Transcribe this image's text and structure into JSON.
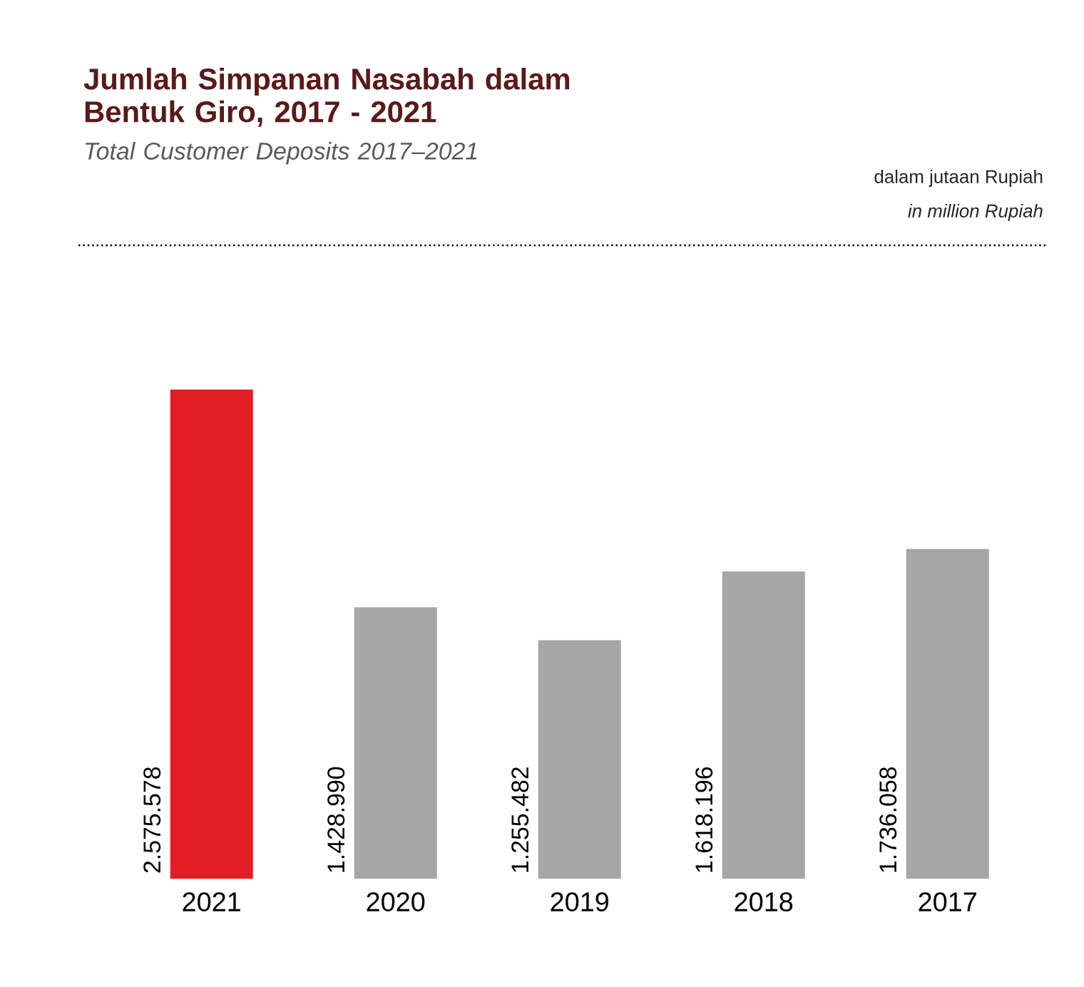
{
  "chart_data": {
    "type": "bar",
    "title": "Jumlah Simpanan Nasabah dalam Bentuk Giro, 2017 - 2021",
    "subtitle": "Total Customer Deposits 2017–2021",
    "annotations": [
      "dalam jutaan Rupiah",
      "*in million Rupiah*"
    ],
    "categories": [
      "2021",
      "2020",
      "2019",
      "2018",
      "2017"
    ],
    "values": [
      2575578,
      1428990,
      1255482,
      1618196,
      1736058
    ],
    "colors": [
      "#e31e24",
      "#a6a6a6",
      "#a6a6a6",
      "#a6a6a6",
      "#a6a6a6"
    ],
    "value_labels": [
      "2.575.578",
      "1.428.990",
      "1.255.482",
      "1.618.196",
      "1.736.058"
    ]
  }
}
